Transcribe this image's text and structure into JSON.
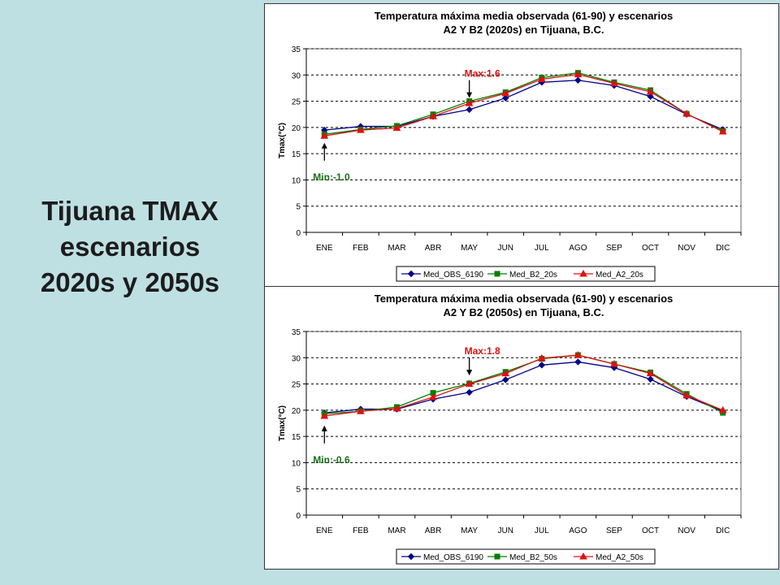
{
  "slide": {
    "title_lines": [
      "Tijuana TMAX",
      "escenarios",
      "2020s y 2050s"
    ]
  },
  "colors": {
    "background": "#bfe0e3",
    "obs": "#00008b",
    "b2": "#008000",
    "a2": "#e01010",
    "max_annotation": "#e01010",
    "min_annotation": "#1a6e1a"
  },
  "chart_data": [
    {
      "type": "line",
      "title": "Temperatura máxima media observada (61-90) y escenarios",
      "subtitle": "A2 Y B2 (2020s) en Tijuana, B.C.",
      "ylabel": "Tmax(°C)",
      "xlabel": "",
      "ylim": [
        0,
        35
      ],
      "yticks": [
        0,
        5,
        10,
        15,
        20,
        25,
        30,
        35
      ],
      "grid": true,
      "legend_position": "bottom",
      "categories": [
        "ENE",
        "FEB",
        "MAR",
        "ABR",
        "MAY",
        "JUN",
        "JUL",
        "AGO",
        "SEP",
        "OCT",
        "NOV",
        "DIC"
      ],
      "series": [
        {
          "name": "Med_OBS_6190",
          "marker": "diamond",
          "color": "#00008b",
          "values": [
            19.5,
            20.2,
            20.2,
            22.1,
            23.4,
            25.6,
            28.6,
            29.0,
            28.0,
            25.9,
            22.5,
            19.6
          ]
        },
        {
          "name": "Med_B2_20s",
          "marker": "square",
          "color": "#008000",
          "values": [
            18.7,
            19.6,
            20.3,
            22.5,
            25.0,
            26.7,
            29.5,
            30.4,
            28.6,
            27.1,
            22.6,
            19.3
          ]
        },
        {
          "name": "Med_A2_20s",
          "marker": "triangle",
          "color": "#e01010",
          "values": [
            18.4,
            19.5,
            19.9,
            22.1,
            24.6,
            26.5,
            29.2,
            30.1,
            28.4,
            26.8,
            22.6,
            19.2
          ]
        }
      ],
      "annotations": [
        {
          "text": "Max:1.6",
          "kind": "max",
          "color": "#e01010",
          "category": "MAY",
          "at_value": 25
        },
        {
          "text": "Min:-1.0",
          "kind": "min",
          "color": "#1a6e1a",
          "category": "ENE",
          "at_value": 18
        }
      ]
    },
    {
      "type": "line",
      "title": "Temperatura máxima media observada (61-90) y escenarios",
      "subtitle": "A2 Y B2 (2050s) en Tijuana, B.C.",
      "ylabel": "Tmax(°C)",
      "xlabel": "",
      "ylim": [
        0,
        35
      ],
      "yticks": [
        0,
        5,
        10,
        15,
        20,
        25,
        30,
        35
      ],
      "grid": true,
      "legend_position": "bottom",
      "categories": [
        "ENE",
        "FEB",
        "MAR",
        "ABR",
        "MAY",
        "JUN",
        "JUL",
        "AGO",
        "SEP",
        "OCT",
        "NOV",
        "DIC"
      ],
      "series": [
        {
          "name": "Med_OBS_6190",
          "marker": "diamond",
          "color": "#00008b",
          "values": [
            19.5,
            20.2,
            20.2,
            22.1,
            23.4,
            25.8,
            28.6,
            29.2,
            28.1,
            25.9,
            22.6,
            19.8
          ]
        },
        {
          "name": "Med_B2_50s",
          "marker": "square",
          "color": "#008000",
          "values": [
            19.3,
            19.8,
            20.6,
            23.3,
            25.1,
            27.3,
            29.8,
            30.5,
            28.8,
            27.2,
            23.1,
            19.5
          ]
        },
        {
          "name": "Med_A2_50s",
          "marker": "triangle",
          "color": "#e01010",
          "values": [
            18.9,
            19.8,
            20.3,
            22.5,
            25.0,
            27.0,
            29.9,
            30.5,
            28.8,
            27.0,
            22.8,
            20.0
          ]
        }
      ],
      "annotations": [
        {
          "text": "Max:1.8",
          "kind": "max",
          "color": "#e01010",
          "category": "MAY",
          "at_value": 26
        },
        {
          "text": "Min:-0.6",
          "kind": "min",
          "color": "#1a6e1a",
          "category": "ENE",
          "at_value": 18
        }
      ]
    }
  ]
}
